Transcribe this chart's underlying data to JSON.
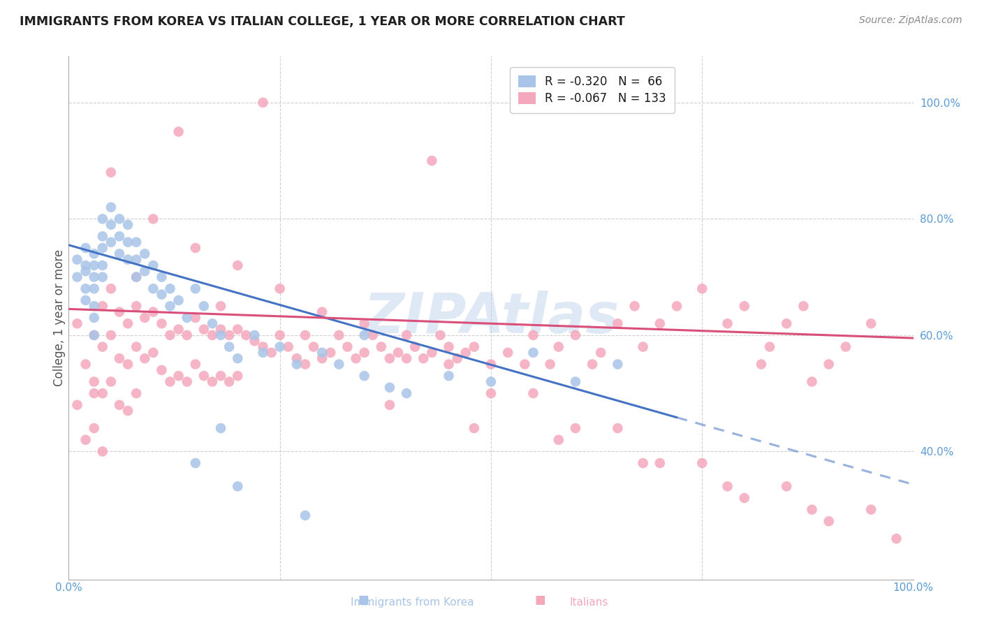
{
  "title": "IMMIGRANTS FROM KOREA VS ITALIAN COLLEGE, 1 YEAR OR MORE CORRELATION CHART",
  "source": "Source: ZipAtlas.com",
  "ylabel": "College, 1 year or more",
  "legend_korea": "Immigrants from Korea",
  "legend_italian": "Italians",
  "korea_color": "#a8c4e8",
  "italian_color": "#f4a8bc",
  "korea_line_color": "#4472c4",
  "italian_line_color": "#d94f7a",
  "watermark": "ZIPAtlas",
  "watermark_color": "#b8d0ec",
  "title_color": "#1f1f1f",
  "source_color": "#888888",
  "axis_label_color": "#5b9bd5",
  "ylabel_color": "#555555",
  "grid_color": "#d0d0d0",
  "xlim": [
    0.0,
    1.0
  ],
  "ylim": [
    0.18,
    1.08
  ],
  "ytick_values": [
    0.4,
    0.6,
    0.8,
    1.0
  ],
  "ytick_labels": [
    "40.0%",
    "60.0%",
    "80.0%",
    "100.0%"
  ],
  "korea_R": -0.32,
  "korea_N": 66,
  "italian_R": -0.067,
  "italian_N": 133,
  "korea_line_x0": 0.0,
  "korea_line_y0": 0.755,
  "korea_line_x1": 0.85,
  "korea_line_y1": 0.405,
  "italian_line_x0": 0.0,
  "italian_line_y0": 0.645,
  "italian_line_x1": 1.0,
  "italian_line_y1": 0.595,
  "korea_x": [
    0.01,
    0.01,
    0.02,
    0.02,
    0.02,
    0.02,
    0.02,
    0.03,
    0.03,
    0.03,
    0.03,
    0.03,
    0.03,
    0.03,
    0.04,
    0.04,
    0.04,
    0.04,
    0.04,
    0.05,
    0.05,
    0.05,
    0.06,
    0.06,
    0.06,
    0.07,
    0.07,
    0.07,
    0.08,
    0.08,
    0.08,
    0.09,
    0.09,
    0.1,
    0.1,
    0.11,
    0.11,
    0.12,
    0.12,
    0.13,
    0.14,
    0.15,
    0.16,
    0.17,
    0.18,
    0.19,
    0.2,
    0.22,
    0.23,
    0.25,
    0.27,
    0.3,
    0.32,
    0.35,
    0.38,
    0.4,
    0.45,
    0.5,
    0.55,
    0.6,
    0.15,
    0.2,
    0.28,
    0.35,
    0.18,
    0.65
  ],
  "korea_y": [
    0.73,
    0.7,
    0.75,
    0.72,
    0.71,
    0.68,
    0.66,
    0.74,
    0.72,
    0.7,
    0.68,
    0.65,
    0.63,
    0.6,
    0.8,
    0.77,
    0.75,
    0.72,
    0.7,
    0.82,
    0.79,
    0.76,
    0.8,
    0.77,
    0.74,
    0.79,
    0.76,
    0.73,
    0.76,
    0.73,
    0.7,
    0.74,
    0.71,
    0.72,
    0.68,
    0.7,
    0.67,
    0.68,
    0.65,
    0.66,
    0.63,
    0.68,
    0.65,
    0.62,
    0.6,
    0.58,
    0.56,
    0.6,
    0.57,
    0.58,
    0.55,
    0.57,
    0.55,
    0.53,
    0.51,
    0.5,
    0.53,
    0.52,
    0.57,
    0.52,
    0.38,
    0.34,
    0.29,
    0.6,
    0.44,
    0.55
  ],
  "italian_x": [
    0.01,
    0.01,
    0.02,
    0.02,
    0.03,
    0.03,
    0.03,
    0.04,
    0.04,
    0.04,
    0.04,
    0.05,
    0.05,
    0.05,
    0.06,
    0.06,
    0.06,
    0.07,
    0.07,
    0.07,
    0.08,
    0.08,
    0.08,
    0.09,
    0.09,
    0.1,
    0.1,
    0.11,
    0.11,
    0.12,
    0.12,
    0.13,
    0.13,
    0.14,
    0.14,
    0.15,
    0.15,
    0.16,
    0.16,
    0.17,
    0.17,
    0.18,
    0.18,
    0.19,
    0.19,
    0.2,
    0.2,
    0.21,
    0.22,
    0.23,
    0.24,
    0.25,
    0.26,
    0.27,
    0.28,
    0.29,
    0.3,
    0.31,
    0.32,
    0.33,
    0.34,
    0.35,
    0.36,
    0.37,
    0.38,
    0.39,
    0.4,
    0.41,
    0.42,
    0.43,
    0.44,
    0.45,
    0.46,
    0.47,
    0.48,
    0.5,
    0.52,
    0.54,
    0.55,
    0.57,
    0.58,
    0.6,
    0.62,
    0.63,
    0.65,
    0.67,
    0.68,
    0.7,
    0.72,
    0.75,
    0.78,
    0.8,
    0.82,
    0.83,
    0.85,
    0.87,
    0.88,
    0.9,
    0.92,
    0.95,
    0.05,
    0.1,
    0.2,
    0.3,
    0.4,
    0.5,
    0.6,
    0.7,
    0.8,
    0.9,
    0.15,
    0.25,
    0.35,
    0.45,
    0.55,
    0.65,
    0.75,
    0.85,
    0.95,
    0.03,
    0.08,
    0.18,
    0.28,
    0.38,
    0.48,
    0.58,
    0.68,
    0.78,
    0.88,
    0.98,
    0.13,
    0.23,
    0.43
  ],
  "italian_y": [
    0.62,
    0.48,
    0.55,
    0.42,
    0.6,
    0.52,
    0.44,
    0.65,
    0.58,
    0.5,
    0.4,
    0.68,
    0.6,
    0.52,
    0.64,
    0.56,
    0.48,
    0.62,
    0.55,
    0.47,
    0.65,
    0.58,
    0.5,
    0.63,
    0.56,
    0.64,
    0.57,
    0.62,
    0.54,
    0.6,
    0.52,
    0.61,
    0.53,
    0.6,
    0.52,
    0.63,
    0.55,
    0.61,
    0.53,
    0.6,
    0.52,
    0.61,
    0.53,
    0.6,
    0.52,
    0.61,
    0.53,
    0.6,
    0.59,
    0.58,
    0.57,
    0.6,
    0.58,
    0.56,
    0.6,
    0.58,
    0.56,
    0.57,
    0.6,
    0.58,
    0.56,
    0.57,
    0.6,
    0.58,
    0.56,
    0.57,
    0.6,
    0.58,
    0.56,
    0.57,
    0.6,
    0.58,
    0.56,
    0.57,
    0.58,
    0.55,
    0.57,
    0.55,
    0.6,
    0.55,
    0.58,
    0.6,
    0.55,
    0.57,
    0.62,
    0.65,
    0.58,
    0.62,
    0.65,
    0.68,
    0.62,
    0.65,
    0.55,
    0.58,
    0.62,
    0.65,
    0.52,
    0.55,
    0.58,
    0.62,
    0.88,
    0.8,
    0.72,
    0.64,
    0.56,
    0.5,
    0.44,
    0.38,
    0.32,
    0.28,
    0.75,
    0.68,
    0.62,
    0.55,
    0.5,
    0.44,
    0.38,
    0.34,
    0.3,
    0.5,
    0.7,
    0.65,
    0.55,
    0.48,
    0.44,
    0.42,
    0.38,
    0.34,
    0.3,
    0.25,
    0.95,
    1.0,
    0.9
  ]
}
